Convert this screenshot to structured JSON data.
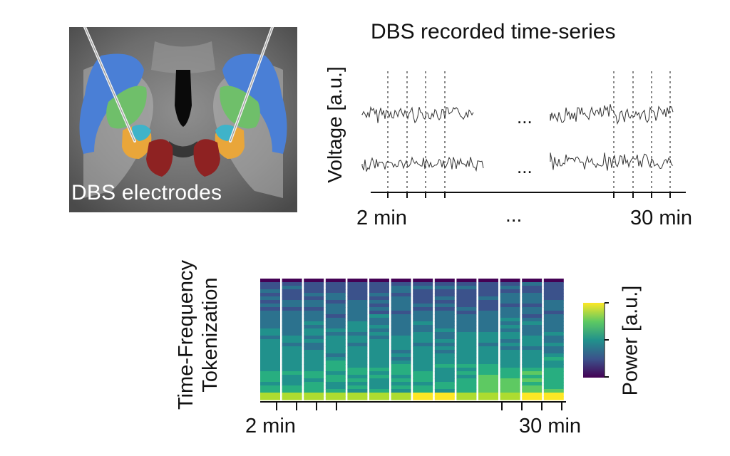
{
  "panel_a": {
    "label": "DBS electrodes",
    "structure_colors": {
      "caudate": "#4a7fd6",
      "putamen": "#6fbf6a",
      "gpe": "#e9a63a",
      "gpi": "#3fb3c9",
      "stn_red": "#8e2222"
    }
  },
  "panel_b": {
    "title": "DBS recorded time-series",
    "ylabel": "Voltage [a.u.]",
    "tick_left": "2 min",
    "tick_right": "30 min",
    "ellipsis": "...",
    "channels": 2,
    "trace_color": "#333333",
    "marker_color": "#888888"
  },
  "panel_c": {
    "ylabel_line1": "Time-Frequency",
    "ylabel_line2": "Tokenization",
    "tick_left": "2 min",
    "tick_right": "30 min",
    "token_columns": 14,
    "colorbar_label": "Power [a.u.]",
    "colormap": [
      "#440154",
      "#3b528b",
      "#21918c",
      "#5ec962",
      "#fde725"
    ]
  }
}
